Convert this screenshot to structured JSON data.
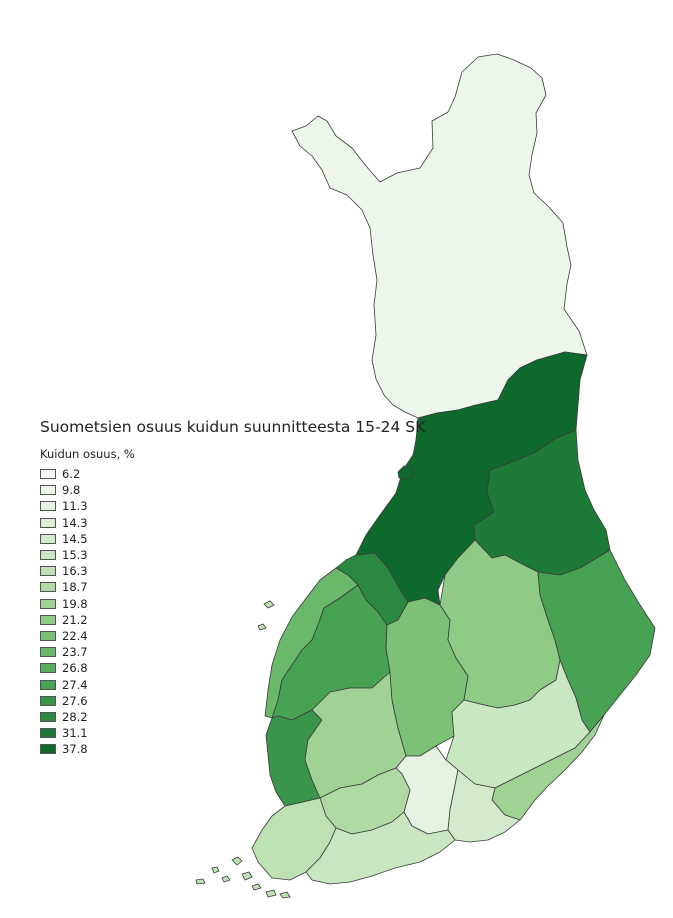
{
  "map": {
    "title": "Suometsien osuus kuidun suunnitteesta 15-24 SK",
    "legend_title": "Kuidun osuus, %",
    "legend": [
      {
        "label": "6.2",
        "color": "#f2f8f0"
      },
      {
        "label": "9.8",
        "color": "#edf6ea"
      },
      {
        "label": "11.3",
        "color": "#e6f3e2"
      },
      {
        "label": "14.3",
        "color": "#dcefd6"
      },
      {
        "label": "14.5",
        "color": "#d3ebcc"
      },
      {
        "label": "15.3",
        "color": "#c9e7c0"
      },
      {
        "label": "16.3",
        "color": "#bde1b3"
      },
      {
        "label": "18.7",
        "color": "#afdaa4"
      },
      {
        "label": "19.8",
        "color": "#a0d295"
      },
      {
        "label": "21.2",
        "color": "#8fca86"
      },
      {
        "label": "22.4",
        "color": "#7dc177"
      },
      {
        "label": "23.7",
        "color": "#6ab86a"
      },
      {
        "label": "26.8",
        "color": "#58ad5e"
      },
      {
        "label": "27.4",
        "color": "#47a253"
      },
      {
        "label": "27.6",
        "color": "#389549"
      },
      {
        "label": "28.2",
        "color": "#2b8840"
      },
      {
        "label": "31.1",
        "color": "#1d7a37"
      },
      {
        "label": "37.8",
        "color": "#0e6a2c"
      }
    ],
    "regions": [
      {
        "name": "lappi",
        "color": "#edf6ea"
      },
      {
        "name": "pohjois-pohjanmaa",
        "color": "#0e6a2c"
      },
      {
        "name": "kainuu",
        "color": "#1d7a37"
      },
      {
        "name": "keski-pohjanmaa",
        "color": "#2b8840"
      },
      {
        "name": "pohjanmaa",
        "color": "#6ab86a"
      },
      {
        "name": "etela-pohjanmaa",
        "color": "#47a253"
      },
      {
        "name": "keski-suomi",
        "color": "#7dc177"
      },
      {
        "name": "pohjois-savo",
        "color": "#8fca86"
      },
      {
        "name": "pohjois-karjala",
        "color": "#47a253"
      },
      {
        "name": "satakunta",
        "color": "#389549"
      },
      {
        "name": "pirkanmaa",
        "color": "#a0d295"
      },
      {
        "name": "etela-savo",
        "color": "#c9e7c0"
      },
      {
        "name": "etela-karjala",
        "color": "#a0d295"
      },
      {
        "name": "kanta-hame",
        "color": "#afdaa4"
      },
      {
        "name": "paijat-hame",
        "color": "#e6f3e2"
      },
      {
        "name": "kymenlaakso",
        "color": "#d3ebcc"
      },
      {
        "name": "varsinais-suomi",
        "color": "#bde1b3"
      },
      {
        "name": "uusimaa",
        "color": "#c9e7c0"
      }
    ]
  }
}
